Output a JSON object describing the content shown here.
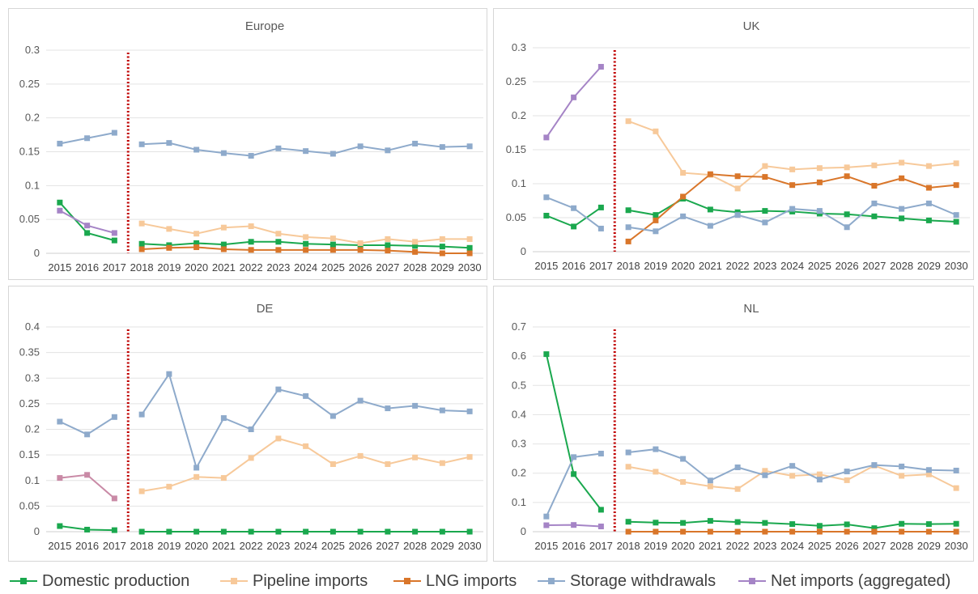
{
  "colors": {
    "domestic": "#1aa84e",
    "pipeline": "#f7c99a",
    "lng": "#d9762a",
    "storage": "#8eaacb",
    "net": "#a584c6",
    "net_de": "#c98aa6",
    "divider": "#c00000",
    "grid": "#e3e3e3",
    "axis_text": "#595959"
  },
  "legend": [
    {
      "label": "Domestic production",
      "color_key": "domestic"
    },
    {
      "label": "Pipeline imports",
      "color_key": "pipeline"
    },
    {
      "label": "LNG imports",
      "color_key": "lng"
    },
    {
      "label": "Storage withdrawals",
      "color_key": "storage"
    },
    {
      "label": "Net imports (aggregated)",
      "color_key": "net"
    }
  ],
  "chart_data": [
    {
      "type": "line",
      "title": "Europe",
      "x": [
        "2015",
        "2016",
        "2017",
        "2018",
        "2019",
        "2020",
        "2021",
        "2022",
        "2023",
        "2024",
        "2025",
        "2026",
        "2027",
        "2028",
        "2029",
        "2030"
      ],
      "ylim": [
        0,
        0.3
      ],
      "yticks": [
        "0",
        "0.05",
        "0.1",
        "0.15",
        "0.2",
        "0.25",
        "0.3"
      ],
      "grid": true,
      "divider_after": "2017",
      "series": [
        {
          "name": "Domestic production",
          "color_key": "domestic",
          "values": [
            0.075,
            0.03,
            0.019,
            0.014,
            0.012,
            0.015,
            0.013,
            0.017,
            0.017,
            0.014,
            0.013,
            0.012,
            0.012,
            0.011,
            0.01,
            0.008
          ]
        },
        {
          "name": "Pipeline imports",
          "color_key": "pipeline",
          "values": [
            null,
            null,
            null,
            0.044,
            0.036,
            0.029,
            0.038,
            0.04,
            0.029,
            0.024,
            0.022,
            0.015,
            0.021,
            0.017,
            0.021,
            0.021
          ]
        },
        {
          "name": "LNG imports",
          "color_key": "lng",
          "values": [
            null,
            null,
            null,
            0.006,
            0.008,
            0.009,
            0.006,
            0.005,
            0.005,
            0.005,
            0.005,
            0.005,
            0.004,
            0.002,
            0.0,
            0.0
          ]
        },
        {
          "name": "Storage withdrawals",
          "color_key": "storage",
          "values": [
            0.162,
            0.17,
            0.178,
            0.161,
            0.163,
            0.153,
            0.148,
            0.144,
            0.155,
            0.151,
            0.147,
            0.158,
            0.152,
            0.162,
            0.157,
            0.158
          ]
        },
        {
          "name": "Net imports (aggregated)",
          "color_key": "net",
          "values": [
            0.063,
            0.041,
            0.03,
            null,
            null,
            null,
            null,
            null,
            null,
            null,
            null,
            null,
            null,
            null,
            null,
            null
          ]
        }
      ]
    },
    {
      "type": "line",
      "title": "UK",
      "x": [
        "2015",
        "2016",
        "2017",
        "2018",
        "2019",
        "2020",
        "2021",
        "2022",
        "2023",
        "2024",
        "2025",
        "2026",
        "2027",
        "2028",
        "2029",
        "2030"
      ],
      "ylim": [
        0,
        0.3
      ],
      "yticks": [
        "0",
        "0.05",
        "0.1",
        "0.15",
        "0.2",
        "0.25",
        "0.3"
      ],
      "grid": true,
      "divider_after": "2017",
      "series": [
        {
          "name": "Domestic production",
          "color_key": "domestic",
          "values": [
            0.053,
            0.037,
            0.065,
            0.061,
            0.054,
            0.078,
            0.062,
            0.058,
            0.06,
            0.059,
            0.056,
            0.055,
            0.052,
            0.049,
            0.046,
            0.044
          ]
        },
        {
          "name": "Pipeline imports",
          "color_key": "pipeline",
          "values": [
            null,
            null,
            null,
            0.192,
            0.177,
            0.116,
            0.113,
            0.093,
            0.126,
            0.121,
            0.123,
            0.124,
            0.127,
            0.131,
            0.126,
            0.13
          ]
        },
        {
          "name": "LNG imports",
          "color_key": "lng",
          "values": [
            null,
            null,
            null,
            0.015,
            0.046,
            0.081,
            0.114,
            0.111,
            0.11,
            0.098,
            0.102,
            0.111,
            0.097,
            0.108,
            0.094,
            0.098
          ]
        },
        {
          "name": "Storage withdrawals",
          "color_key": "storage",
          "values": [
            0.08,
            0.064,
            0.034,
            0.036,
            0.03,
            0.052,
            0.038,
            0.054,
            0.043,
            0.063,
            0.06,
            0.036,
            0.071,
            0.063,
            0.071,
            0.054
          ]
        },
        {
          "name": "Net imports (aggregated)",
          "color_key": "net",
          "values": [
            0.168,
            0.227,
            0.272,
            null,
            null,
            null,
            null,
            null,
            null,
            null,
            null,
            null,
            null,
            null,
            null,
            null
          ]
        }
      ]
    },
    {
      "type": "line",
      "title": "DE",
      "x": [
        "2015",
        "2016",
        "2017",
        "2018",
        "2019",
        "2020",
        "2021",
        "2022",
        "2023",
        "2024",
        "2025",
        "2026",
        "2027",
        "2028",
        "2029",
        "2030"
      ],
      "ylim": [
        0,
        0.4
      ],
      "yticks": [
        "0",
        "0.05",
        "0.1",
        "0.15",
        "0.2",
        "0.25",
        "0.3",
        "0.35",
        "0.4"
      ],
      "grid": true,
      "divider_after": "2017",
      "series": [
        {
          "name": "Domestic production",
          "color_key": "domestic",
          "values": [
            0.011,
            0.004,
            0.003,
            0,
            0,
            0,
            0,
            0,
            0,
            0,
            0,
            0,
            0,
            0,
            0,
            0
          ]
        },
        {
          "name": "Pipeline imports",
          "color_key": "pipeline",
          "values": [
            null,
            null,
            null,
            0.079,
            0.088,
            0.107,
            0.105,
            0.144,
            0.182,
            0.167,
            0.132,
            0.148,
            0.132,
            0.145,
            0.134,
            0.146
          ]
        },
        {
          "name": "Storage withdrawals",
          "color_key": "storage",
          "values": [
            0.215,
            0.19,
            0.224,
            0.229,
            0.308,
            0.125,
            0.222,
            0.2,
            0.278,
            0.265,
            0.226,
            0.256,
            0.241,
            0.246,
            0.237,
            0.235
          ]
        },
        {
          "name": "Net imports (aggregated)",
          "color_key": "net_de",
          "values": [
            0.105,
            0.111,
            0.065,
            null,
            null,
            null,
            null,
            null,
            null,
            null,
            null,
            null,
            null,
            null,
            null,
            null
          ]
        }
      ]
    },
    {
      "type": "line",
      "title": "NL",
      "x": [
        "2015",
        "2016",
        "2017",
        "2018",
        "2019",
        "2020",
        "2021",
        "2022",
        "2023",
        "2024",
        "2025",
        "2026",
        "2027",
        "2028",
        "2029",
        "2030"
      ],
      "ylim": [
        0,
        0.7
      ],
      "yticks": [
        "0",
        "0.1",
        "0.2",
        "0.3",
        "0.4",
        "0.5",
        "0.6",
        "0.7"
      ],
      "grid": true,
      "divider_after": "2017",
      "series": [
        {
          "name": "Domestic production",
          "color_key": "domestic",
          "values": [
            0.607,
            0.197,
            0.075,
            0.034,
            0.031,
            0.03,
            0.037,
            0.033,
            0.03,
            0.026,
            0.02,
            0.025,
            0.012,
            0.027,
            0.026,
            0.027
          ]
        },
        {
          "name": "Pipeline imports",
          "color_key": "pipeline",
          "values": [
            null,
            null,
            null,
            0.222,
            0.205,
            0.17,
            0.155,
            0.146,
            0.208,
            0.191,
            0.196,
            0.176,
            0.226,
            0.191,
            0.196,
            0.149
          ]
        },
        {
          "name": "LNG imports",
          "color_key": "lng",
          "values": [
            null,
            null,
            null,
            0,
            0,
            0,
            0,
            0,
            0,
            0,
            0,
            0,
            0,
            0,
            0,
            0
          ]
        },
        {
          "name": "Storage withdrawals",
          "color_key": "storage",
          "values": [
            0.052,
            0.255,
            0.267,
            0.271,
            0.282,
            0.249,
            0.175,
            0.22,
            0.193,
            0.225,
            0.178,
            0.206,
            0.228,
            0.223,
            0.211,
            0.209
          ]
        },
        {
          "name": "Net imports (aggregated)",
          "color_key": "net",
          "values": [
            0.022,
            0.023,
            0.018,
            null,
            null,
            null,
            null,
            null,
            null,
            null,
            null,
            null,
            null,
            null,
            null,
            null
          ]
        }
      ]
    }
  ]
}
